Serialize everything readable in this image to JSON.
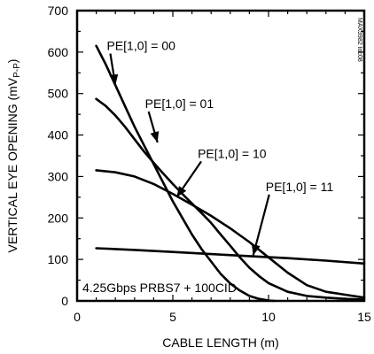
{
  "chart_data": {
    "type": "line",
    "title": "",
    "xlabel": "CABLE LENGTH (m)",
    "ylabel": "VERTICAL EYE OPENING (mV",
    "ylabel_sub": "P-P",
    "ylabel_close": ")",
    "xlim": [
      0,
      15
    ],
    "ylim": [
      0,
      700
    ],
    "xticks": [
      0,
      5,
      10,
      15
    ],
    "yticks": [
      0,
      100,
      200,
      300,
      400,
      500,
      600,
      700
    ],
    "grid": false,
    "note": "4.25Gbps PRBS7 + 100CID",
    "side_text": "MAX3982 toc08",
    "series": [
      {
        "name": "PE[1,0] = 00",
        "label": "PE[1,0] = 00",
        "x": [
          1,
          1.5,
          2,
          2.5,
          3,
          3.5,
          4,
          4.5,
          5,
          5.5,
          6,
          6.5,
          7,
          7.5,
          8,
          8.5,
          9,
          9.5,
          10,
          10.3
        ],
        "y": [
          615,
          570,
          520,
          470,
          420,
          375,
          330,
          285,
          240,
          200,
          160,
          125,
          95,
          65,
          42,
          25,
          12,
          5,
          1,
          0
        ]
      },
      {
        "name": "PE[1,0] = 01",
        "label": "PE[1,0] = 01",
        "x": [
          1,
          1.5,
          2,
          2.5,
          3,
          3.5,
          4,
          4.5,
          5,
          5.5,
          6,
          6.5,
          7,
          7.5,
          8,
          8.5,
          9,
          9.5,
          10,
          11,
          12,
          13,
          14,
          15
        ],
        "y": [
          487,
          470,
          447,
          420,
          390,
          360,
          333,
          307,
          282,
          258,
          235,
          212,
          188,
          160,
          133,
          105,
          80,
          60,
          43,
          22,
          12,
          8,
          5,
          3
        ]
      },
      {
        "name": "PE[1,0] = 10",
        "label": "PE[1,0] = 10",
        "x": [
          1,
          2,
          3,
          4,
          5,
          6,
          7,
          8,
          9,
          10,
          11,
          12,
          13,
          14,
          15
        ],
        "y": [
          315,
          310,
          300,
          282,
          258,
          232,
          205,
          175,
          142,
          105,
          68,
          38,
          22,
          15,
          8
        ]
      },
      {
        "name": "PE[1,0] = 11",
        "label": "PE[1,0] = 11",
        "x": [
          1,
          3,
          5,
          7,
          9,
          11,
          13,
          15
        ],
        "y": [
          127,
          123,
          118,
          113,
          108,
          103,
          97,
          90
        ]
      }
    ],
    "annotations": [
      {
        "series": 0,
        "text_x": 1.55,
        "text_y": 605,
        "tip_x": 2.0,
        "tip_y": 520
      },
      {
        "series": 1,
        "text_x": 3.55,
        "text_y": 465,
        "tip_x": 4.2,
        "tip_y": 382
      },
      {
        "series": 2,
        "text_x": 6.3,
        "text_y": 345,
        "tip_x": 5.2,
        "tip_y": 250
      },
      {
        "series": 3,
        "text_x": 9.85,
        "text_y": 265,
        "tip_x": 9.2,
        "tip_y": 110
      }
    ]
  }
}
